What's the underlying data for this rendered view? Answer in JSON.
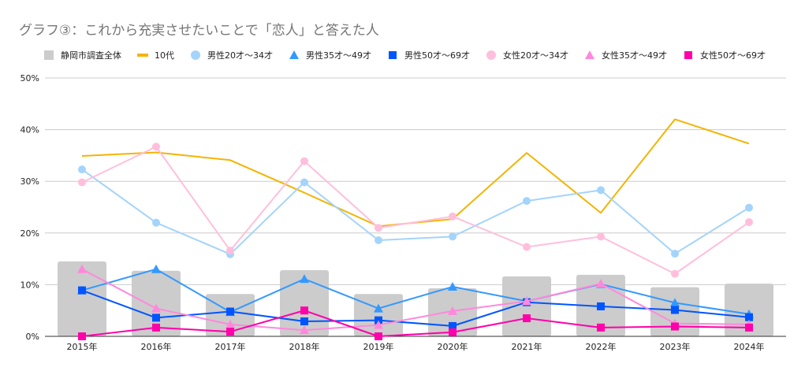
{
  "chart_data": {
    "type": "bar+line",
    "title": "グラフ③：これから充実させたいことで「恋人」と答えた人",
    "xlabel": "",
    "ylabel": "",
    "ylim": [
      0,
      50
    ],
    "yticks": [
      "0%",
      "10%",
      "20%",
      "30%",
      "40%",
      "50%"
    ],
    "ytick_values": [
      0,
      10,
      20,
      30,
      40,
      50
    ],
    "grid": true,
    "legend_position": "top-left",
    "categories": [
      "2015年",
      "2016年",
      "2017年",
      "2018年",
      "2019年",
      "2020年",
      "2021年",
      "2022年",
      "2023年",
      "2024年"
    ],
    "series": [
      {
        "name": "静岡市調査全体",
        "kind": "bar",
        "marker": "square",
        "color": "#cccccc",
        "values": [
          14.5,
          12.7,
          8.2,
          12.8,
          8.2,
          9.3,
          11.6,
          11.9,
          9.5,
          10.2
        ]
      },
      {
        "name": "10代",
        "kind": "line",
        "marker": "none",
        "color": "#f4b400",
        "values": [
          34.9,
          35.6,
          34.1,
          27.8,
          21.3,
          22.7,
          35.5,
          23.9,
          42.0,
          37.3
        ]
      },
      {
        "name": "男性20才～34才",
        "kind": "line",
        "marker": "circle",
        "color": "#a4d4fb",
        "values": [
          32.3,
          22.0,
          15.9,
          29.8,
          18.6,
          19.3,
          26.2,
          28.3,
          16.0,
          24.9
        ]
      },
      {
        "name": "男性35才～49才",
        "kind": "line",
        "marker": "triangle",
        "color": "#3399ff",
        "values": [
          8.9,
          13.0,
          4.7,
          11.1,
          5.4,
          9.6,
          6.8,
          10.1,
          6.5,
          4.3
        ]
      },
      {
        "name": "男性50才～69才",
        "kind": "line",
        "marker": "square",
        "color": "#0055ff",
        "values": [
          8.9,
          3.6,
          4.8,
          2.9,
          3.1,
          2.0,
          6.6,
          5.8,
          5.1,
          3.7
        ]
      },
      {
        "name": "女性20才～34才",
        "kind": "line",
        "marker": "circle",
        "color": "#ffbfdc",
        "values": [
          29.8,
          36.7,
          16.6,
          33.9,
          21.0,
          23.2,
          17.3,
          19.3,
          12.1,
          22.1
        ]
      },
      {
        "name": "女性35才～49才",
        "kind": "line",
        "marker": "triangle",
        "color": "#ff88dd",
        "values": [
          13.0,
          5.4,
          2.3,
          1.2,
          2.2,
          4.9,
          6.8,
          10.2,
          2.5,
          2.3
        ]
      },
      {
        "name": "女性50才～69才",
        "kind": "line",
        "marker": "square",
        "color": "#ff00aa",
        "values": [
          0.0,
          1.7,
          0.9,
          5.0,
          0.0,
          0.8,
          3.5,
          1.7,
          1.9,
          1.7
        ]
      }
    ]
  }
}
